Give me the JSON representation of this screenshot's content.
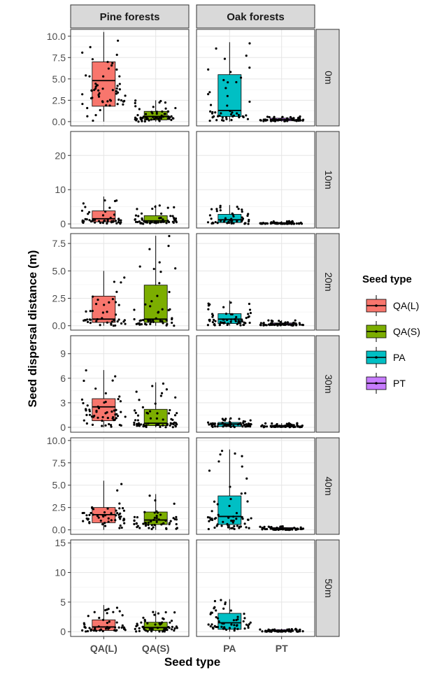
{
  "chart_data": {
    "type": "box",
    "xlabel": "Seed type",
    "ylabel": "Seed dispersal distance (m)",
    "x": [
      "QA(L)",
      "QA(S)",
      "PA",
      "PT"
    ],
    "facet_columns": [
      "Pine forests",
      "Oak forests"
    ],
    "facet_rows": [
      "0m",
      "10m",
      "20m",
      "30m",
      "40m",
      "50m"
    ],
    "legend": {
      "title": "Seed type",
      "position": "right",
      "entries": [
        {
          "name": "QA(L)",
          "color": "#F8766D"
        },
        {
          "name": "QA(S)",
          "color": "#7CAE00"
        },
        {
          "name": "PA",
          "color": "#00BFC4"
        },
        {
          "name": "PT",
          "color": "#C77CFF"
        }
      ]
    },
    "grid": true,
    "rows": [
      {
        "label": "0m",
        "ylim": [
          -0.5,
          10.8
        ],
        "yticks": [
          0.0,
          2.5,
          5.0,
          7.5,
          10.0
        ],
        "ytick_labels": [
          "0.0",
          "2.5",
          "5.0",
          "7.5",
          "10.0"
        ],
        "boxes": [
          {
            "seed": "QA(L)",
            "forest": "Pine forests",
            "q1": 1.8,
            "median": 4.8,
            "q3": 7.0,
            "whisker_low": 0.0,
            "whisker_high": 10.5
          },
          {
            "seed": "QA(S)",
            "forest": "Pine forests",
            "q1": 0.2,
            "median": 0.6,
            "q3": 1.2,
            "whisker_low": 0.0,
            "whisker_high": 2.5
          },
          {
            "seed": "PA",
            "forest": "Oak forests",
            "q1": 0.6,
            "median": 1.3,
            "q3": 5.5,
            "whisker_low": 0.0,
            "whisker_high": 9.3
          },
          {
            "seed": "PT",
            "forest": "Oak forests",
            "q1": 0.1,
            "median": 0.25,
            "q3": 0.4,
            "whisker_low": 0.0,
            "whisker_high": 0.6
          }
        ]
      },
      {
        "label": "10m",
        "ylim": [
          -1.2,
          27
        ],
        "yticks": [
          0,
          10,
          20
        ],
        "ytick_labels": [
          "0",
          "10",
          "20"
        ],
        "boxes": [
          {
            "seed": "QA(L)",
            "forest": "Pine forests",
            "q1": 0.6,
            "median": 1.5,
            "q3": 3.8,
            "whisker_low": 0.0,
            "whisker_high": 8.0
          },
          {
            "seed": "QA(S)",
            "forest": "Pine forests",
            "q1": 0.4,
            "median": 0.9,
            "q3": 2.4,
            "whisker_low": 0.0,
            "whisker_high": 5.5
          },
          {
            "seed": "PA",
            "forest": "Oak forests",
            "q1": 0.4,
            "median": 1.2,
            "q3": 2.8,
            "whisker_low": 0.0,
            "whisker_high": 5.5
          },
          {
            "seed": "PT",
            "forest": "Oak forests",
            "q1": 0.05,
            "median": 0.2,
            "q3": 0.4,
            "whisker_low": 0.0,
            "whisker_high": 0.8
          }
        ]
      },
      {
        "label": "20m",
        "ylim": [
          -0.4,
          8.4
        ],
        "yticks": [
          0.0,
          2.5,
          5.0,
          7.5
        ],
        "ytick_labels": [
          "0.0",
          "2.5",
          "5.0",
          "7.5"
        ],
        "boxes": [
          {
            "seed": "QA(L)",
            "forest": "Pine forests",
            "q1": 0.3,
            "median": 0.6,
            "q3": 2.7,
            "whisker_low": 0.0,
            "whisker_high": 5.0
          },
          {
            "seed": "QA(S)",
            "forest": "Pine forests",
            "q1": 0.3,
            "median": 0.6,
            "q3": 3.7,
            "whisker_low": 0.0,
            "whisker_high": 8.2
          },
          {
            "seed": "PA",
            "forest": "Oak forests",
            "q1": 0.2,
            "median": 0.6,
            "q3": 1.1,
            "whisker_low": 0.0,
            "whisker_high": 2.3
          },
          {
            "seed": "PT",
            "forest": "Oak forests",
            "q1": 0.05,
            "median": 0.15,
            "q3": 0.25,
            "whisker_low": 0.0,
            "whisker_high": 0.5
          }
        ]
      },
      {
        "label": "30m",
        "ylim": [
          -0.6,
          11.2
        ],
        "yticks": [
          0,
          3,
          6,
          9
        ],
        "ytick_labels": [
          "0",
          "3",
          "6",
          "9"
        ],
        "boxes": [
          {
            "seed": "QA(L)",
            "forest": "Pine forests",
            "q1": 0.8,
            "median": 2.5,
            "q3": 3.5,
            "whisker_low": 0.0,
            "whisker_high": 7.0
          },
          {
            "seed": "QA(S)",
            "forest": "Pine forests",
            "q1": 0.2,
            "median": 0.5,
            "q3": 2.2,
            "whisker_low": 0.0,
            "whisker_high": 5.5
          },
          {
            "seed": "PA",
            "forest": "Oak forests",
            "q1": 0.1,
            "median": 0.4,
            "q3": 0.6,
            "whisker_low": 0.0,
            "whisker_high": 1.1
          },
          {
            "seed": "PT",
            "forest": "Oak forests",
            "q1": 0.05,
            "median": 0.15,
            "q3": 0.25,
            "whisker_low": 0.0,
            "whisker_high": 0.5
          }
        ]
      },
      {
        "label": "40m",
        "ylim": [
          -0.5,
          10.3
        ],
        "yticks": [
          0.0,
          2.5,
          5.0,
          7.5,
          10.0
        ],
        "ytick_labels": [
          "0.0",
          "2.5",
          "5.0",
          "7.5",
          "10.0"
        ],
        "boxes": [
          {
            "seed": "QA(L)",
            "forest": "Pine forests",
            "q1": 0.8,
            "median": 1.7,
            "q3": 2.5,
            "whisker_low": 0.0,
            "whisker_high": 5.5
          },
          {
            "seed": "QA(S)",
            "forest": "Pine forests",
            "q1": 0.6,
            "median": 1.1,
            "q3": 2.0,
            "whisker_low": 0.0,
            "whisker_high": 4.0
          },
          {
            "seed": "PA",
            "forest": "Oak forests",
            "q1": 0.6,
            "median": 1.5,
            "q3": 3.8,
            "whisker_low": 0.0,
            "whisker_high": 9.0
          },
          {
            "seed": "PT",
            "forest": "Oak forests",
            "q1": 0.05,
            "median": 0.15,
            "q3": 0.25,
            "whisker_low": 0.0,
            "whisker_high": 0.4
          }
        ]
      },
      {
        "label": "50m",
        "ylim": [
          -0.8,
          15.5
        ],
        "yticks": [
          0,
          5,
          10,
          15
        ],
        "ytick_labels": [
          "0",
          "5",
          "10",
          "15"
        ],
        "boxes": [
          {
            "seed": "QA(L)",
            "forest": "Pine forests",
            "q1": 0.2,
            "median": 0.8,
            "q3": 2.0,
            "whisker_low": 0.0,
            "whisker_high": 4.5
          },
          {
            "seed": "QA(S)",
            "forest": "Pine forests",
            "q1": 0.2,
            "median": 0.7,
            "q3": 1.6,
            "whisker_low": 0.0,
            "whisker_high": 3.5
          },
          {
            "seed": "PA",
            "forest": "Oak forests",
            "q1": 0.4,
            "median": 1.5,
            "q3": 3.1,
            "whisker_low": 0.0,
            "whisker_high": 5.5
          },
          {
            "seed": "PT",
            "forest": "Oak forests",
            "q1": 0.05,
            "median": 0.15,
            "q3": 0.35,
            "whisker_low": 0.0,
            "whisker_high": 0.5
          }
        ]
      }
    ],
    "points_note": "",
    "point_color": "#000000"
  }
}
